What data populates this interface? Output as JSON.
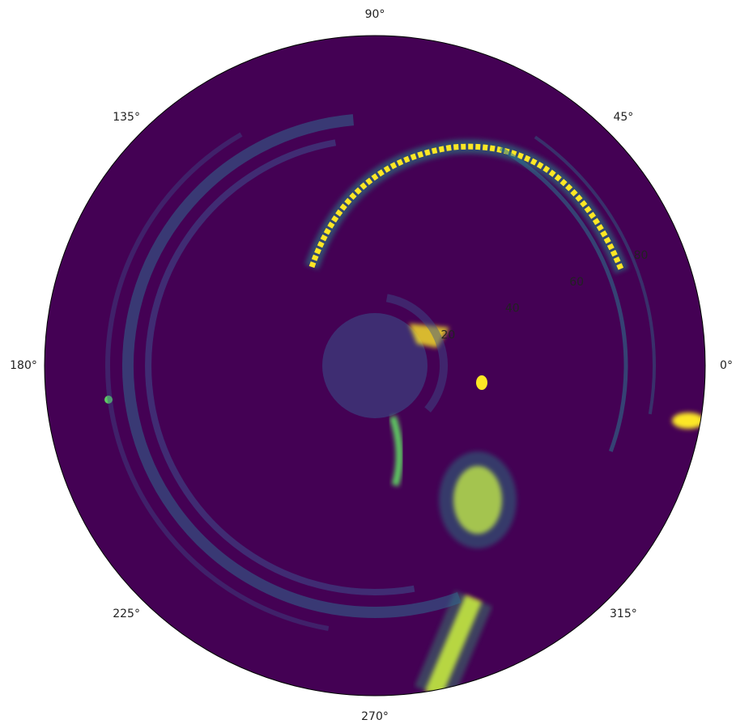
{
  "chart_data": {
    "type": "polar",
    "xticks": [
      {
        "value": 0,
        "label": "0°"
      },
      {
        "value": 45,
        "label": "45°"
      },
      {
        "value": 90,
        "label": "90°"
      },
      {
        "value": 135,
        "label": "135°"
      },
      {
        "value": 180,
        "label": "180°"
      },
      {
        "value": 225,
        "label": "225°"
      },
      {
        "value": 270,
        "label": "270°"
      },
      {
        "value": 315,
        "label": "315°"
      }
    ],
    "ylim": [
      0,
      95
    ],
    "yticks": [
      20,
      40,
      60,
      80
    ],
    "rlabel_angle": 22.5,
    "grid": false,
    "background": "#440154"
  }
}
